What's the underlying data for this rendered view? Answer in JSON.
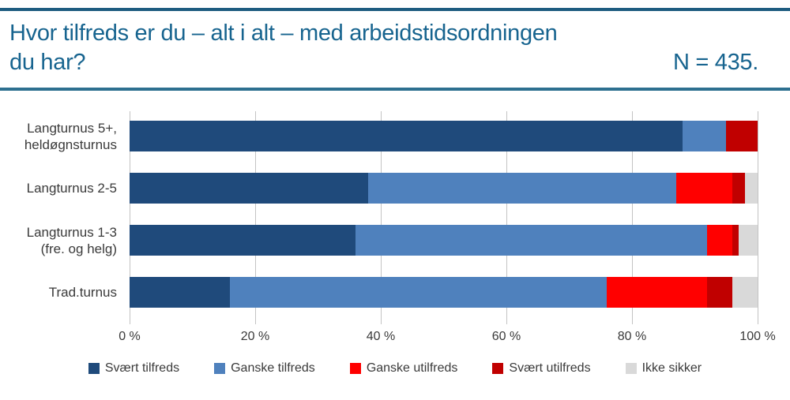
{
  "header": {
    "title_line1": "Hvor tilfreds er du – alt i alt – med arbeidstidsordningen",
    "title_line2": "du har?",
    "n_label": "N = 435."
  },
  "colors": {
    "title_text": "#17648F",
    "top_border": "#1E5C80",
    "divider": "#2D7090",
    "gridline": "#C3C3C3",
    "axis_text": "#3A3A3A"
  },
  "chart_data": {
    "type": "bar",
    "orientation": "horizontal",
    "stacked": true,
    "unit": "%",
    "grid": true,
    "legend_position": "bottom",
    "categories": [
      [
        "Langturnus 5+,",
        "heldøgnsturnus"
      ],
      [
        "Langturnus 2-5"
      ],
      [
        "Langturnus 1-3",
        "(fre. og helg)"
      ],
      [
        "Trad.turnus"
      ]
    ],
    "series": [
      {
        "name": "Svært tilfreds",
        "color": "#1F4A7B",
        "values": [
          88,
          38,
          36,
          16
        ]
      },
      {
        "name": "Ganske tilfreds",
        "color": "#4F81BD",
        "values": [
          7,
          49,
          56,
          60
        ]
      },
      {
        "name": "Ganske utilfreds",
        "color": "#FF0000",
        "values": [
          0,
          9,
          4,
          16
        ]
      },
      {
        "name": "Svært utilfreds",
        "color": "#C00000",
        "values": [
          5,
          2,
          1,
          4
        ]
      },
      {
        "name": "Ikke sikker",
        "color": "#D9D9D9",
        "values": [
          0,
          2,
          3,
          4
        ]
      }
    ],
    "x_axis": {
      "min": 0,
      "max": 100,
      "tick_labels": [
        "0 %",
        "20 %",
        "40 %",
        "60 %",
        "80 %",
        "100 %"
      ]
    }
  }
}
